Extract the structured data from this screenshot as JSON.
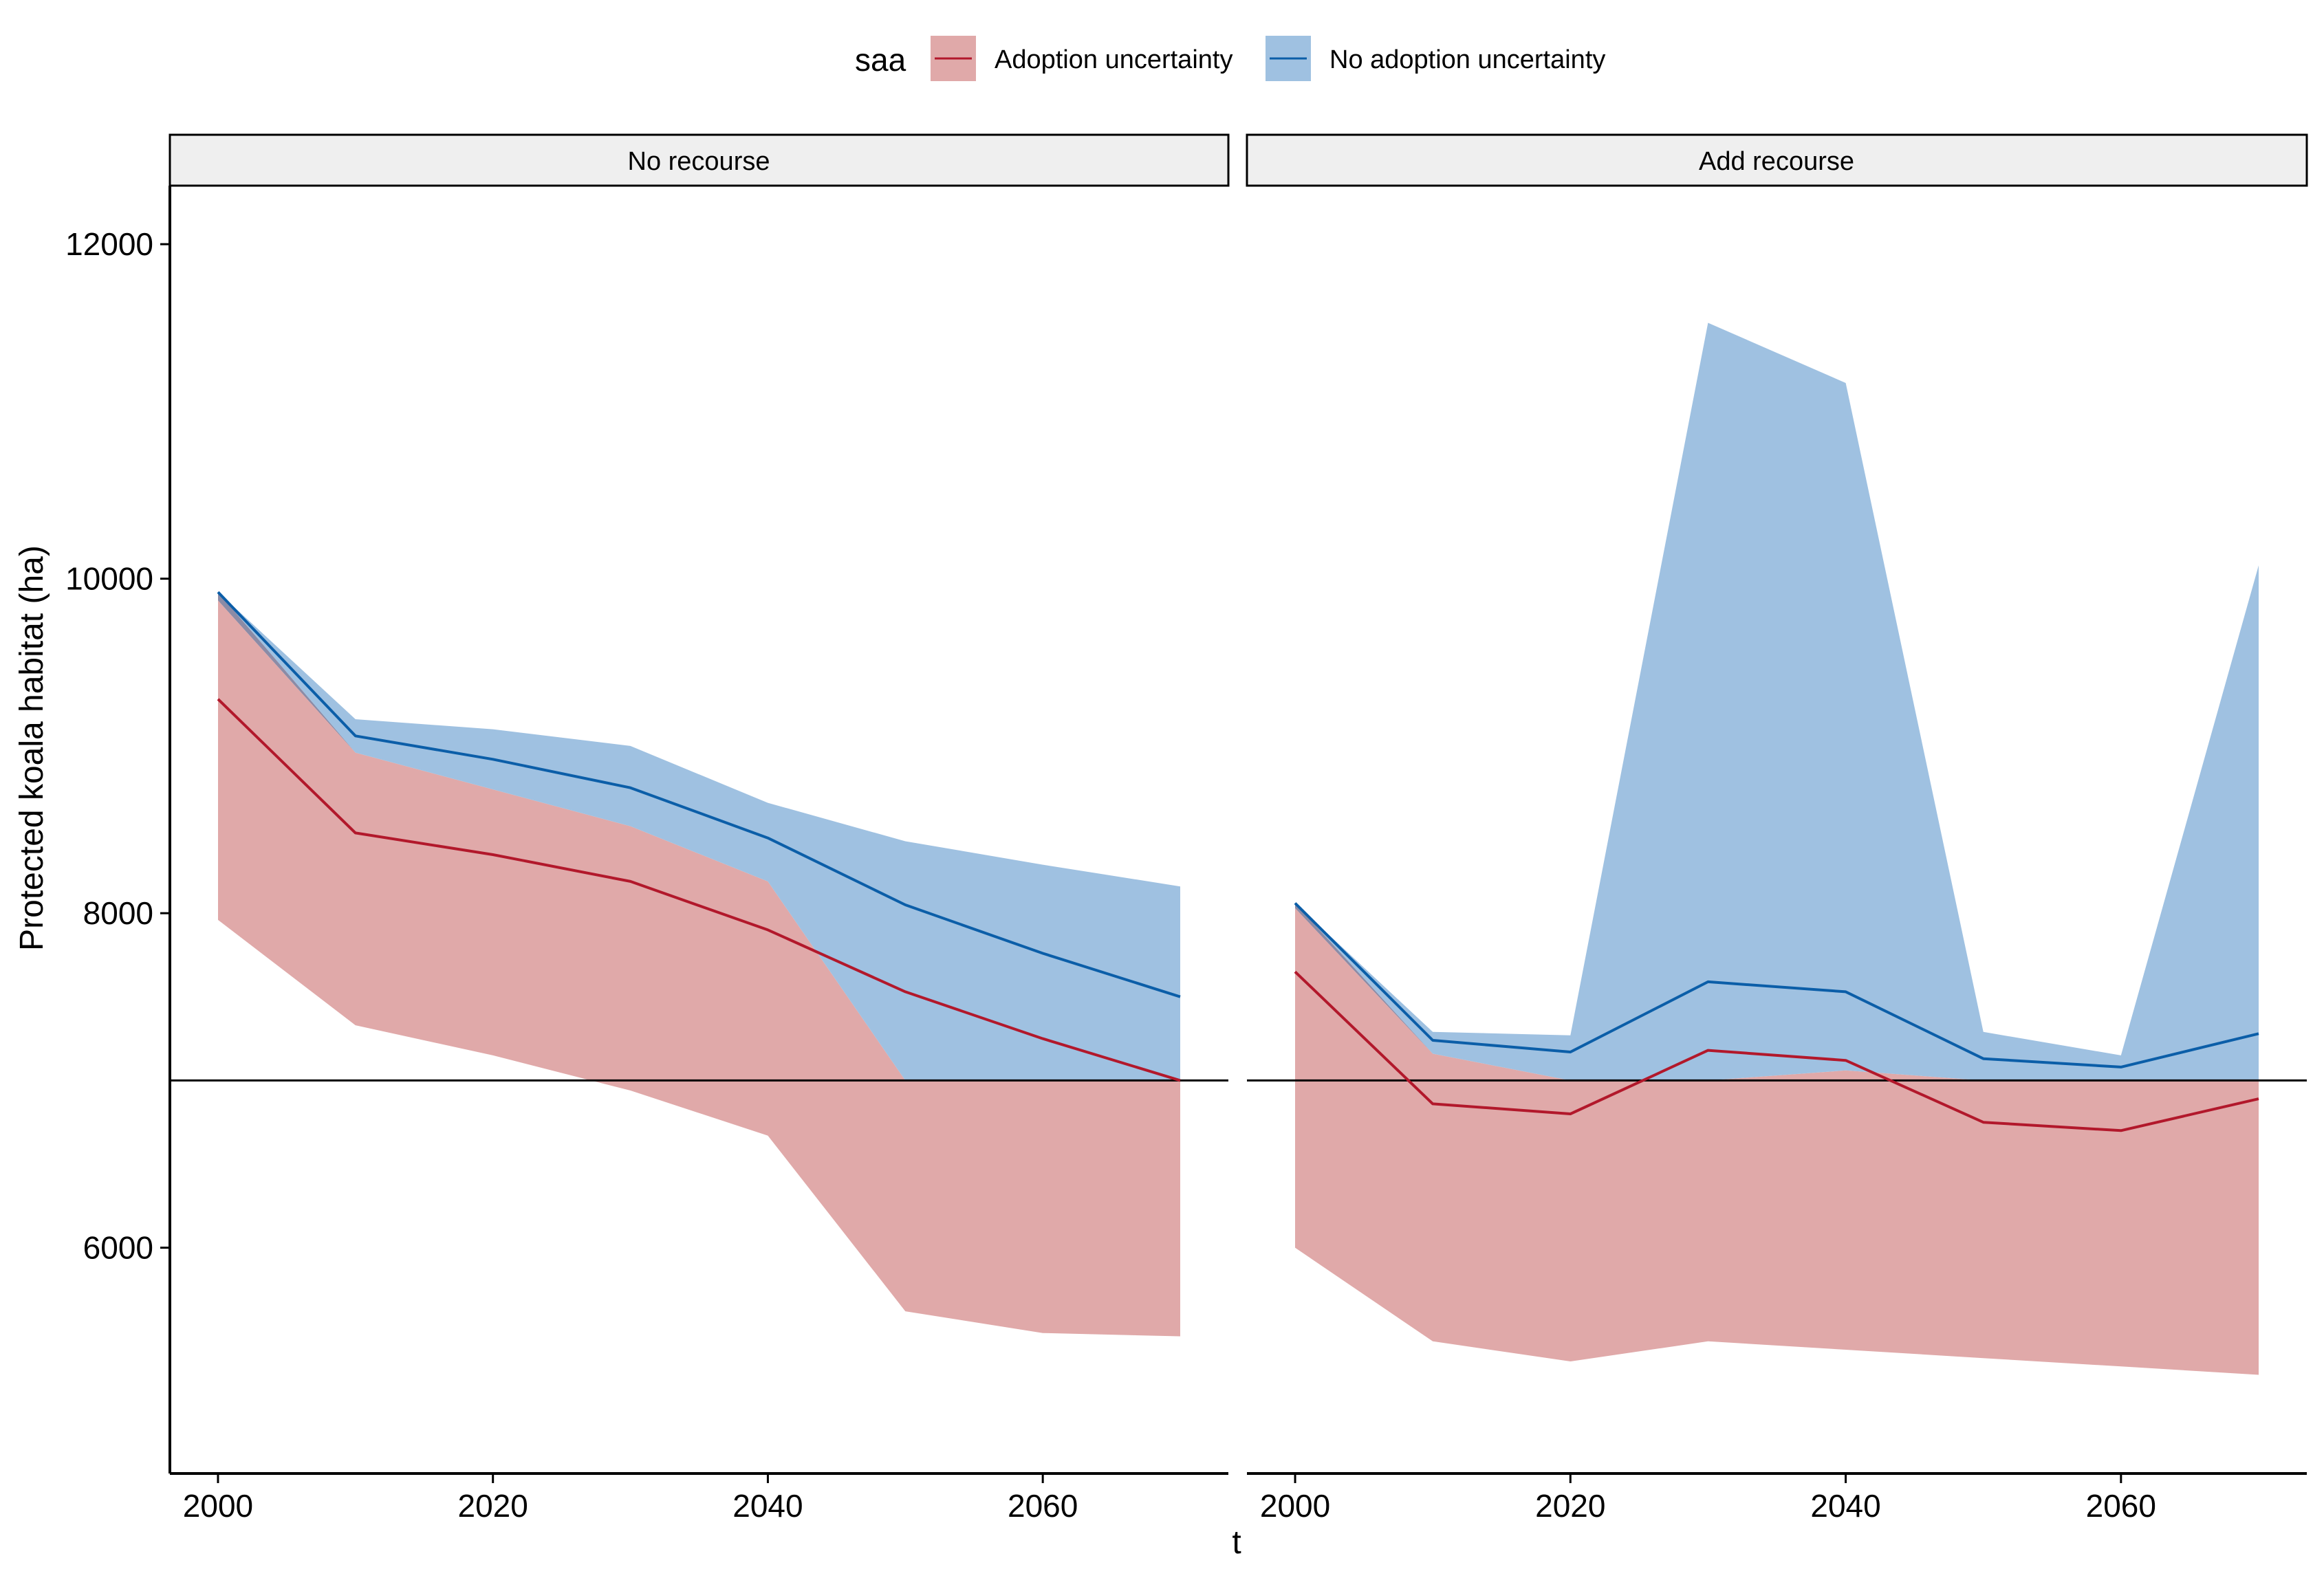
{
  "chart_data": {
    "type": "area",
    "legend": {
      "title": "saa",
      "position": "top",
      "entries": [
        {
          "label": "Adoption uncertainty",
          "line_color": "#B2182B",
          "fill_color": "#E0A9A9"
        },
        {
          "label": "No adoption uncertainty",
          "line_color": "#0B5EA8",
          "fill_color": "#9FC1E1"
        }
      ]
    },
    "xlabel": "t",
    "ylabel": "Protected koala habitat (ha)",
    "xlim": [
      1996.5,
      2073.5
    ],
    "ylim": [
      4650,
      12350
    ],
    "x_ticks": [
      2000,
      2020,
      2040,
      2060
    ],
    "y_ticks": [
      6000,
      8000,
      10000,
      12000
    ],
    "reference_line": 7000,
    "overlap_fill_color": "#8B8BA6",
    "grid": false,
    "panels": [
      {
        "label": "No recourse",
        "x": [
          2000,
          2010,
          2020,
          2030,
          2040,
          2050,
          2060,
          2070
        ],
        "series": [
          {
            "name": "Adoption uncertainty",
            "mean": [
              9280,
              8480,
              8350,
              8190,
              7900,
              7530,
              7250,
              7000
            ],
            "lower": [
              7960,
              7330,
              7150,
              6940,
              6670,
              5620,
              5490,
              5470
            ],
            "upper": [
              9870,
              8960,
              8740,
              8520,
              8190,
              7000,
              7000,
              7000
            ]
          },
          {
            "name": "No adoption uncertainty",
            "mean": [
              9920,
              9060,
              8920,
              8750,
              8450,
              8050,
              7760,
              7500
            ],
            "lower": [
              9920,
              8960,
              8740,
              8520,
              8190,
              7000,
              7000,
              7000
            ],
            "upper": [
              9920,
              9160,
              9100,
              9000,
              8660,
              8430,
              8290,
              8160
            ]
          }
        ]
      },
      {
        "label": "Add recourse",
        "x": [
          2000,
          2010,
          2020,
          2030,
          2040,
          2050,
          2060,
          2070
        ],
        "series": [
          {
            "name": "Adoption uncertainty",
            "mean": [
              7650,
              6860,
              6800,
              7180,
              7120,
              6750,
              6700,
              6890
            ],
            "lower": [
              6000,
              5440,
              5320,
              5440,
              5390,
              5340,
              5290,
              5240
            ],
            "upper": [
              8030,
              7160,
              7000,
              7000,
              7060,
              7000,
              7000,
              7000
            ]
          },
          {
            "name": "No adoption uncertainty",
            "mean": [
              8060,
              7240,
              7170,
              7590,
              7530,
              7130,
              7080,
              7280
            ],
            "lower": [
              8060,
              7160,
              7000,
              7000,
              7060,
              7000,
              7000,
              7000
            ],
            "upper": [
              8060,
              7290,
              7270,
              11530,
              11170,
              7290,
              7150,
              10080
            ]
          }
        ]
      }
    ]
  }
}
